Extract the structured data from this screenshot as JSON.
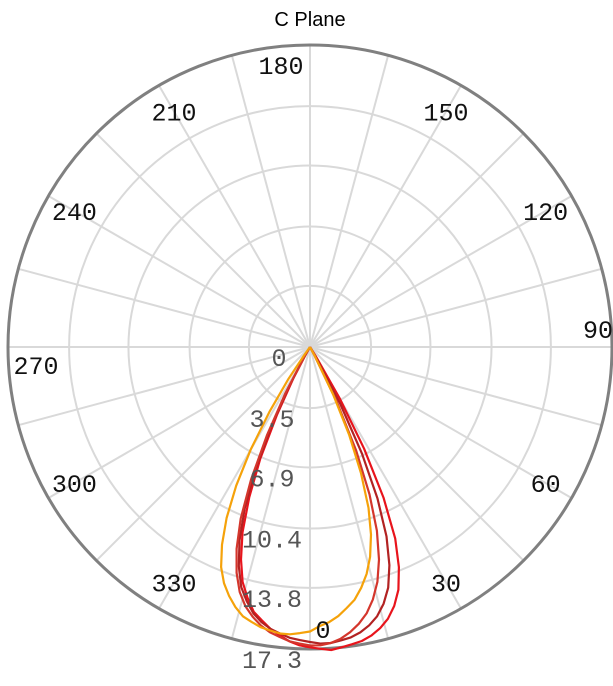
{
  "chart_data": {
    "type": "polar-line",
    "title": "C Plane",
    "angular_ticks": [
      "180",
      "150",
      "120",
      "90",
      "60",
      "30",
      "0",
      "330",
      "300",
      "270",
      "240",
      "210"
    ],
    "angular_tick_degrees": [
      180,
      150,
      120,
      90,
      60,
      30,
      0,
      330,
      300,
      270,
      240,
      210
    ],
    "radial_ticks": [
      "0",
      "3.5",
      "6.9",
      "10.4",
      "13.8",
      "17.3"
    ],
    "radial_tick_values": [
      0,
      3.5,
      6.9,
      10.4,
      13.8,
      17.3
    ],
    "rlim": [
      0,
      17.3
    ],
    "zero_direction": "bottom",
    "angle_direction": "counterclockwise",
    "grid": true,
    "series": [
      {
        "color": "#e8141c",
        "theta": [
          -30,
          -28,
          -26,
          -24,
          -22,
          -20,
          -18,
          -16,
          -14,
          -12,
          -10,
          -8,
          -6,
          -4,
          -2,
          0,
          2,
          4,
          6,
          8,
          10,
          12,
          14,
          16,
          18,
          20,
          22,
          24,
          26,
          28,
          30,
          32
        ],
        "r": [
          0.5,
          2.0,
          4.3,
          7.0,
          9.3,
          11.3,
          12.8,
          14.0,
          14.8,
          15.5,
          15.9,
          16.3,
          16.6,
          16.9,
          17.1,
          17.2,
          17.3,
          17.4,
          17.3,
          17.2,
          17.1,
          16.9,
          16.6,
          16.2,
          15.6,
          14.8,
          13.6,
          12.0,
          9.6,
          6.6,
          3.4,
          0.6
        ]
      },
      {
        "color": "#b22222",
        "theta": [
          -30,
          -28,
          -26,
          -24,
          -22,
          -20,
          -18,
          -16,
          -14,
          -12,
          -10,
          -8,
          -6,
          -4,
          -2,
          0,
          2,
          4,
          6,
          8,
          10,
          12,
          14,
          16,
          18,
          20,
          22,
          24,
          26,
          28,
          30
        ],
        "r": [
          0.6,
          2.6,
          5.0,
          7.7,
          10.0,
          11.8,
          13.2,
          14.3,
          15.0,
          15.6,
          16.0,
          16.3,
          16.5,
          16.7,
          16.8,
          16.9,
          17.0,
          17.0,
          16.9,
          16.8,
          16.6,
          16.3,
          15.9,
          15.3,
          14.5,
          13.3,
          11.7,
          9.5,
          6.8,
          3.7,
          0.6
        ]
      },
      {
        "color": "#d4362c",
        "theta": [
          -30,
          -28,
          -26,
          -24,
          -22,
          -20,
          -18,
          -16,
          -14,
          -12,
          -10,
          -8,
          -6,
          -4,
          -2,
          0,
          2,
          4,
          6,
          8,
          10,
          12,
          14,
          16,
          18,
          20,
          22,
          24,
          26,
          28
        ],
        "r": [
          0.7,
          3.0,
          5.6,
          8.3,
          10.6,
          12.3,
          13.6,
          14.6,
          15.3,
          15.8,
          16.2,
          16.5,
          16.7,
          16.9,
          17.0,
          17.1,
          17.1,
          17.0,
          16.8,
          16.5,
          16.1,
          15.6,
          14.9,
          14.0,
          12.8,
          11.2,
          9.1,
          6.5,
          3.5,
          0.5
        ]
      },
      {
        "color": "#f5a20a",
        "theta": [
          -36,
          -34,
          -32,
          -30,
          -28,
          -26,
          -24,
          -22,
          -20,
          -18,
          -16,
          -14,
          -12,
          -10,
          -8,
          -6,
          -4,
          -2,
          0,
          2,
          4,
          6,
          8,
          10,
          12,
          14,
          16,
          18,
          20,
          22,
          24,
          26,
          28
        ],
        "r": [
          0.5,
          2.2,
          4.4,
          6.8,
          9.0,
          10.9,
          12.4,
          13.6,
          14.4,
          15.0,
          15.5,
          15.9,
          16.1,
          16.3,
          16.4,
          16.5,
          16.5,
          16.4,
          16.3,
          16.0,
          15.8,
          15.5,
          15.1,
          14.7,
          14.1,
          13.4,
          12.5,
          11.3,
          9.8,
          7.8,
          5.5,
          3.0,
          0.6
        ]
      }
    ]
  }
}
